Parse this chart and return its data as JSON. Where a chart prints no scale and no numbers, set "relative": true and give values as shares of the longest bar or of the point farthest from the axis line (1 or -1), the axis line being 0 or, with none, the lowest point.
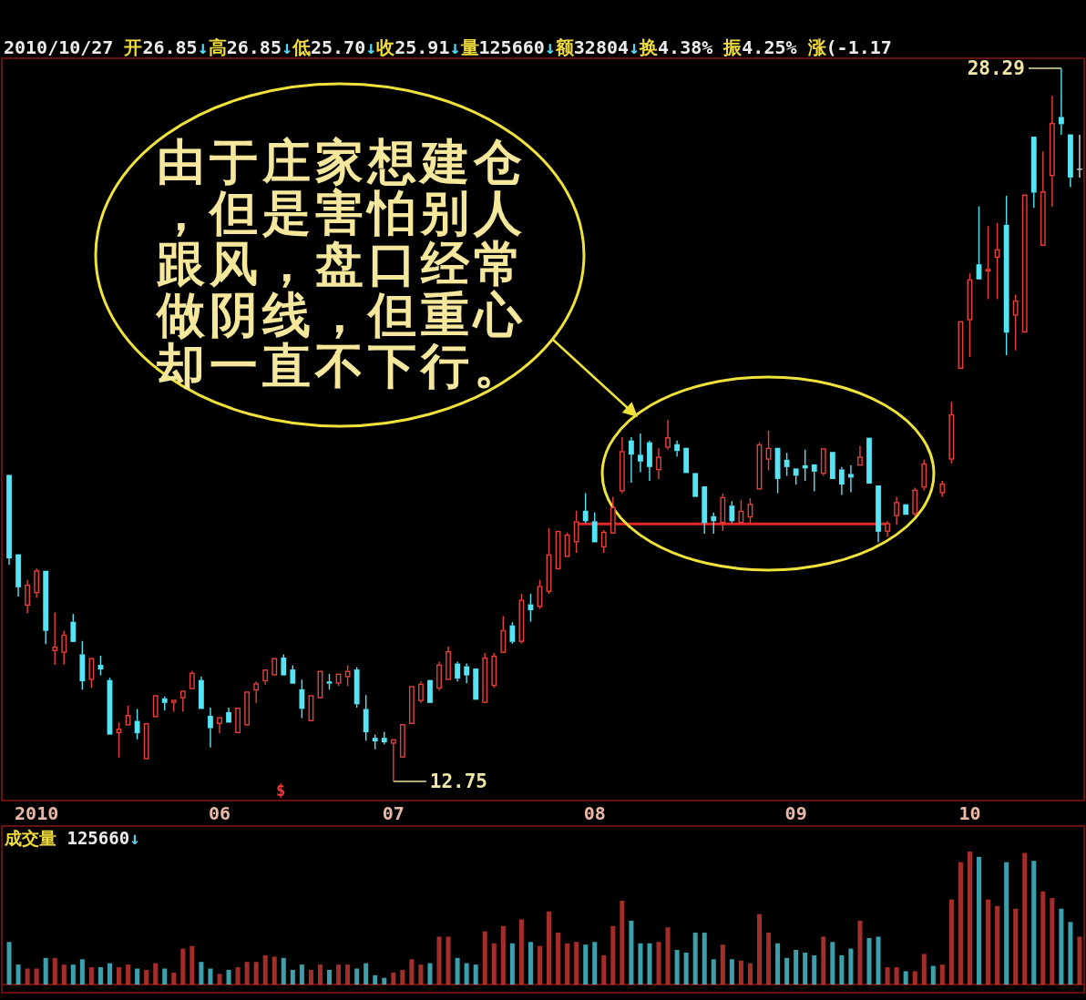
{
  "chart_data": [
    {
      "type": "candlestick",
      "subtitle": "2010/10/27 开26.85↓高26.85↓低25.70↓收25.91↓量125660↓额32804↓换4.38% 振4.25% 涨(-1.17",
      "tick_labels": "x",
      "categories": [
        null,
        null,
        null,
        "2010",
        null,
        null,
        null,
        null,
        null,
        null,
        null,
        null,
        null,
        null,
        null,
        null,
        null,
        null,
        null,
        null,
        null,
        null,
        null,
        "06",
        null,
        null,
        null,
        null,
        null,
        null,
        null,
        null,
        null,
        null,
        null,
        null,
        null,
        null,
        null,
        null,
        null,
        null,
        "07",
        null,
        null,
        null,
        null,
        null,
        null,
        null,
        null,
        null,
        null,
        null,
        null,
        null,
        null,
        null,
        null,
        null,
        null,
        null,
        null,
        null,
        "08",
        null,
        null,
        null,
        null,
        null,
        null,
        null,
        null,
        null,
        null,
        null,
        null,
        null,
        null,
        null,
        null,
        null,
        null,
        null,
        null,
        null,
        "09",
        null,
        null,
        null,
        null,
        null,
        null,
        null,
        null,
        null,
        null,
        null,
        null,
        null,
        null,
        null,
        null,
        null,
        null,
        "10",
        null,
        null,
        null,
        null,
        null,
        null,
        null,
        null,
        null,
        null,
        null,
        null
      ],
      "ohlc": [
        [
          19.43,
          19.43,
          17.47,
          17.61
        ],
        [
          17.7,
          17.72,
          16.78,
          16.98
        ],
        [
          16.58,
          17.14,
          16.41,
          17.04
        ],
        [
          16.85,
          17.39,
          16.75,
          17.35
        ],
        [
          17.34,
          17.34,
          15.74,
          16.03
        ],
        [
          15.59,
          16.43,
          15.29,
          15.69
        ],
        [
          15.55,
          16.03,
          15.3,
          15.95
        ],
        [
          16.23,
          16.4,
          15.77,
          15.79
        ],
        [
          15.52,
          15.81,
          14.75,
          14.93
        ],
        [
          14.96,
          15.46,
          14.79,
          15.44
        ],
        [
          15.29,
          15.49,
          15.06,
          15.19
        ],
        [
          14.96,
          15.01,
          13.76,
          13.77
        ],
        [
          13.8,
          14.03,
          13.27,
          13.9
        ],
        [
          13.97,
          14.4,
          13.95,
          14.2
        ],
        [
          14.07,
          14.33,
          13.67,
          13.8
        ],
        [
          13.23,
          14.03,
          13.21,
          14.02
        ],
        [
          14.15,
          14.66,
          14.13,
          14.63
        ],
        [
          14.56,
          14.6,
          14.3,
          14.46
        ],
        [
          14.46,
          14.54,
          14.27,
          14.53
        ],
        [
          14.56,
          14.76,
          14.27,
          14.73
        ],
        [
          14.76,
          15.16,
          14.75,
          15.12
        ],
        [
          14.96,
          15.03,
          14.31,
          14.33
        ],
        [
          14.18,
          14.36,
          13.49,
          13.91
        ],
        [
          14.0,
          14.18,
          13.8,
          14.15
        ],
        [
          14.26,
          14.36,
          14.0,
          14.03
        ],
        [
          13.8,
          14.38,
          13.78,
          14.36
        ],
        [
          13.97,
          14.73,
          13.95,
          14.71
        ],
        [
          14.73,
          14.93,
          14.46,
          14.89
        ],
        [
          14.93,
          15.22,
          14.86,
          15.19
        ],
        [
          15.06,
          15.46,
          15.03,
          15.44
        ],
        [
          15.45,
          15.52,
          15.04,
          15.06
        ],
        [
          15.19,
          15.28,
          14.86,
          14.88
        ],
        [
          14.76,
          14.97,
          14.13,
          14.33
        ],
        [
          14.06,
          14.66,
          14.03,
          14.63
        ],
        [
          14.56,
          15.19,
          14.53,
          15.16
        ],
        [
          14.93,
          15.09,
          14.75,
          14.88
        ],
        [
          14.88,
          15.12,
          14.83,
          15.1
        ],
        [
          15.02,
          15.28,
          14.83,
          15.16
        ],
        [
          15.19,
          15.24,
          14.36,
          14.43
        ],
        [
          14.33,
          14.63,
          13.64,
          13.82
        ],
        [
          13.7,
          13.77,
          13.45,
          13.62
        ],
        [
          13.7,
          13.83,
          13.56,
          13.6
        ],
        [
          13.57,
          13.7,
          12.75,
          13.67
        ],
        [
          13.27,
          14.03,
          13.24,
          14.0
        ],
        [
          14.0,
          14.86,
          13.97,
          14.83
        ],
        [
          14.5,
          14.93,
          14.46,
          14.88
        ],
        [
          14.96,
          14.99,
          14.44,
          14.46
        ],
        [
          14.77,
          15.36,
          14.73,
          15.3
        ],
        [
          14.96,
          15.69,
          14.93,
          15.59
        ],
        [
          15.32,
          15.36,
          14.93,
          14.99
        ],
        [
          15.26,
          15.32,
          14.89,
          15.06
        ],
        [
          15.21,
          15.24,
          14.5,
          14.53
        ],
        [
          14.46,
          15.55,
          14.44,
          15.45
        ],
        [
          14.83,
          15.55,
          14.79,
          15.49
        ],
        [
          15.55,
          16.35,
          15.52,
          16.05
        ],
        [
          16.15,
          16.22,
          15.75,
          15.79
        ],
        [
          15.79,
          16.84,
          15.75,
          16.71
        ],
        [
          16.61,
          16.84,
          16.23,
          16.48
        ],
        [
          16.55,
          17.14,
          16.51,
          17.01
        ],
        [
          16.88,
          18.27,
          16.84,
          17.7
        ],
        [
          17.37,
          18.23,
          17.34,
          18.21
        ],
        [
          17.64,
          18.17,
          17.62,
          18.13
        ],
        [
          17.96,
          18.65,
          17.73,
          18.42
        ],
        [
          18.65,
          19.03,
          18.38,
          18.42
        ],
        [
          18.42,
          18.61,
          17.95,
          17.96
        ],
        [
          17.85,
          18.23,
          17.73,
          18.19
        ],
        [
          18.15,
          18.95,
          18.13,
          18.73
        ],
        [
          19.07,
          20.25,
          19.03,
          19.95
        ],
        [
          20.18,
          20.25,
          19.26,
          19.87
        ],
        [
          19.87,
          20.33,
          19.49,
          19.72
        ],
        [
          20.14,
          20.18,
          19.3,
          19.6
        ],
        [
          19.53,
          20.02,
          19.34,
          19.83
        ],
        [
          20.02,
          20.63,
          19.98,
          20.25
        ],
        [
          20.1,
          20.18,
          19.83,
          19.95
        ],
        [
          20.02,
          20.04,
          19.46,
          19.47
        ],
        [
          19.47,
          19.49,
          18.92,
          18.95
        ],
        [
          19.18,
          19.2,
          18.15,
          18.38
        ],
        [
          18.53,
          18.61,
          18.15,
          18.42
        ],
        [
          18.38,
          19.02,
          18.21,
          18.95
        ],
        [
          18.76,
          18.86,
          18.38,
          18.42
        ],
        [
          18.38,
          18.88,
          18.36,
          18.65
        ],
        [
          18.5,
          18.92,
          18.38,
          18.8
        ],
        [
          19.11,
          20.14,
          19.09,
          20.1
        ],
        [
          19.76,
          20.39,
          19.53,
          20.02
        ],
        [
          20.02,
          20.04,
          19.03,
          19.34
        ],
        [
          19.76,
          19.91,
          19.41,
          19.6
        ],
        [
          19.57,
          19.6,
          19.22,
          19.41
        ],
        [
          19.64,
          19.98,
          19.3,
          19.57
        ],
        [
          19.66,
          19.68,
          19.07,
          19.5
        ],
        [
          19.45,
          20.02,
          19.41,
          20.01
        ],
        [
          19.93,
          19.95,
          19.32,
          19.34
        ],
        [
          19.55,
          19.6,
          18.99,
          19.22
        ],
        [
          19.45,
          19.64,
          19.05,
          19.37
        ],
        [
          19.63,
          20.06,
          19.6,
          19.83
        ],
        [
          20.24,
          20.25,
          19.22,
          19.24
        ],
        [
          19.2,
          19.22,
          17.96,
          18.19
        ],
        [
          18.19,
          18.42,
          18.08,
          18.38
        ],
        [
          18.53,
          18.95,
          18.34,
          18.84
        ],
        [
          18.79,
          18.82,
          18.53,
          18.56
        ],
        [
          18.57,
          19.15,
          18.53,
          19.11
        ],
        [
          19.15,
          19.76,
          19.09,
          19.68
        ],
        null,
        [
          19.03,
          19.3,
          18.95,
          19.24
        ],
        [
          19.76,
          21.02,
          19.68,
          20.75
        ],
        [
          21.74,
          22.8,
          21.72,
          22.78
        ],
        [
          22.8,
          23.82,
          22.0,
          23.69
        ],
        [
          24.02,
          25.28,
          23.68,
          23.69
        ],
        [
          23.86,
          24.85,
          23.26,
          23.92
        ],
        [
          24.16,
          24.92,
          23.26,
          24.35
        ],
        [
          24.88,
          25.51,
          22.04,
          22.53
        ],
        [
          22.9,
          23.36,
          22.14,
          23.23
        ],
        [
          22.53,
          25.56,
          22.51,
          25.54
        ],
        [
          26.8,
          26.81,
          25.25,
          25.58
        ],
        [
          24.42,
          26.48,
          24.41,
          25.61
        ],
        [
          25.94,
          27.69,
          25.28,
          27.1
        ],
        [
          27.23,
          28.29,
          26.84,
          27.07
        ],
        [
          26.85,
          26.85,
          25.7,
          25.91
        ],
        [
          26.09,
          26.84,
          25.91,
          26.09
        ]
      ],
      "colors": [
        "#54e4f4",
        "#54e4f4",
        "#e8403a",
        "#e8403a",
        "#54e4f4",
        "#e8403a",
        "#e8403a",
        "#54e4f4",
        "#54e4f4",
        "#e8403a",
        "#54e4f4",
        "#54e4f4",
        "#e8403a",
        "#e8403a",
        "#54e4f4",
        "#e8403a",
        "#e8403a",
        "#54e4f4",
        "#e8403a",
        "#e8403a",
        "#e8403a",
        "#54e4f4",
        "#54e4f4",
        "#e8403a",
        "#54e4f4",
        "#e8403a",
        "#e8403a",
        "#e8403a",
        "#e8403a",
        "#e8403a",
        "#54e4f4",
        "#54e4f4",
        "#54e4f4",
        "#e8403a",
        "#e8403a",
        "#54e4f4",
        "#e8403a",
        "#e8403a",
        "#54e4f4",
        "#54e4f4",
        "#54e4f4",
        "#54e4f4",
        "#e8403a",
        "#e8403a",
        "#e8403a",
        "#e8403a",
        "#54e4f4",
        "#e8403a",
        "#e8403a",
        "#54e4f4",
        "#54e4f4",
        "#54e4f4",
        "#e8403a",
        "#e8403a",
        "#e8403a",
        "#54e4f4",
        "#e8403a",
        "#54e4f4",
        "#e8403a",
        "#e8403a",
        "#e8403a",
        "#e8403a",
        "#e8403a",
        "#54e4f4",
        "#54e4f4",
        "#e8403a",
        "#e8403a",
        "#e8403a",
        "#54e4f4",
        "#54e4f4",
        "#54e4f4",
        "#e8403a",
        "#e8403a",
        "#54e4f4",
        "#54e4f4",
        "#54e4f4",
        "#54e4f4",
        "#54e4f4",
        "#e8403a",
        "#54e4f4",
        "#e8403a",
        "#e8403a",
        "#e8403a",
        "#e8403a",
        "#54e4f4",
        "#54e4f4",
        "#54e4f4",
        "#54e4f4",
        "#54e4f4",
        "#e8403a",
        "#54e4f4",
        "#54e4f4",
        "#54e4f4",
        "#e8403a",
        "#54e4f4",
        "#54e4f4",
        "#e8403a",
        "#e8403a",
        "#54e4f4",
        "#e8403a",
        "#e8403a",
        null,
        "#e8403a",
        "#e8403a",
        "#e8403a",
        "#e8403a",
        "#54e4f4",
        "#e8403a",
        "#e8403a",
        "#54e4f4",
        "#e8403a",
        "#e8403a",
        "#54e4f4",
        "#e8403a",
        "#e8403a",
        "#54e4f4",
        "#54e4f4",
        "#dcdcdc"
      ],
      "series": [
        {
          "type": "line",
          "color": "#e02828",
          "values": [
            null,
            null,
            null,
            null,
            null,
            null,
            null,
            null,
            null,
            null,
            null,
            null,
            null,
            null,
            null,
            null,
            null,
            null,
            null,
            null,
            null,
            null,
            null,
            null,
            null,
            null,
            null,
            null,
            null,
            null,
            null,
            null,
            null,
            null,
            null,
            null,
            null,
            null,
            null,
            null,
            null,
            null,
            null,
            null,
            null,
            null,
            null,
            null,
            null,
            null,
            null,
            null,
            null,
            null,
            null,
            null,
            null,
            null,
            null,
            null,
            null,
            null,
            18.36,
            18.36,
            18.36,
            18.36,
            18.36,
            18.36,
            18.36,
            18.36,
            18.36,
            18.36,
            18.36,
            18.36,
            18.36,
            18.36,
            18.36,
            18.36,
            18.36,
            18.36,
            18.36,
            18.36,
            18.36,
            18.36,
            18.36,
            18.36,
            18.36,
            18.36,
            18.36,
            18.36,
            18.36,
            18.36,
            18.36,
            18.36,
            18.36,
            18.36,
            18.36,
            null,
            null,
            null,
            null,
            null,
            null,
            null,
            null,
            null,
            null,
            null,
            null,
            null,
            null,
            null,
            null,
            null,
            null,
            null,
            null,
            null
          ]
        }
      ],
      "annotations": [
        "由于庄家想建仓，但是害怕别人跟风，盘口经常做阴线，但重心却一直不下行。",
        "$",
        "28.29",
        {
          "text": "12.75",
          "x": "07",
          "y": 12.75
        }
      ]
    },
    {
      "type": "bar",
      "title": "成交量 125660↓",
      "relative": true,
      "tick_labels": false,
      "categories": [
        null,
        null,
        null,
        null,
        null,
        null,
        null,
        null,
        null,
        null,
        null,
        null,
        null,
        null,
        null,
        null,
        null,
        null,
        null,
        null,
        null,
        null,
        null,
        null,
        null,
        null,
        null,
        null,
        null,
        null,
        null,
        null,
        null,
        null,
        null,
        null,
        null,
        null,
        null,
        null,
        null,
        null,
        null,
        null,
        null,
        null,
        null,
        null,
        null,
        null,
        null,
        null,
        null,
        null,
        null,
        null,
        null,
        null,
        null,
        null,
        null,
        null,
        null,
        null,
        null,
        null,
        null,
        null,
        null,
        null,
        null,
        null,
        null,
        null,
        null,
        null,
        null,
        null,
        null,
        null,
        null,
        null,
        null,
        null,
        null,
        null,
        null,
        null,
        null,
        null,
        null,
        null,
        null,
        null,
        null,
        null,
        null,
        null,
        null,
        null,
        null,
        null,
        null,
        null,
        null,
        null,
        null,
        null,
        null,
        null,
        null,
        null,
        null,
        null,
        null,
        null,
        null,
        null
      ],
      "values": [
        0.32,
        0.15,
        0.12,
        0.12,
        0.2,
        0.2,
        0.15,
        0.15,
        0.19,
        0.13,
        0.13,
        0.16,
        0.13,
        0.15,
        0.12,
        0.11,
        0.16,
        0.12,
        0.09,
        0.27,
        0.29,
        0.17,
        0.12,
        0.08,
        0.11,
        0.13,
        0.17,
        0.17,
        0.22,
        0.21,
        0.2,
        0.11,
        0.15,
        0.11,
        0.15,
        0.11,
        0.15,
        0.15,
        0.12,
        0.16,
        0.07,
        0.05,
        0.09,
        0.11,
        0.19,
        0.15,
        0.16,
        0.36,
        0.36,
        0.2,
        0.16,
        0.15,
        0.4,
        0.31,
        0.44,
        0.31,
        0.49,
        0.32,
        0.29,
        0.55,
        0.39,
        0.31,
        0.32,
        0.3,
        0.32,
        0.22,
        0.44,
        0.63,
        0.48,
        0.31,
        0.31,
        0.32,
        0.43,
        0.26,
        0.24,
        0.39,
        0.39,
        0.19,
        0.3,
        0.19,
        0.18,
        0.16,
        0.53,
        0.39,
        0.31,
        0.2,
        0.26,
        0.24,
        0.22,
        0.36,
        0.32,
        0.22,
        0.27,
        0.48,
        0.35,
        0.36,
        0.13,
        0.13,
        0.1,
        0.1,
        0.23,
        0.14,
        0.15,
        0.64,
        0.92,
        1,
        0.96,
        0.64,
        0.59,
        0.92,
        0.57,
        0.99,
        0.93,
        0.7,
        0.65,
        0.57,
        0.47,
        0.36
      ],
      "colors": [
        "#54e4f4",
        "#54e4f4",
        "#e8403a",
        "#e8403a",
        "#54e4f4",
        "#e8403a",
        "#e8403a",
        "#54e4f4",
        "#54e4f4",
        "#e8403a",
        "#54e4f4",
        "#54e4f4",
        "#e8403a",
        "#e8403a",
        "#54e4f4",
        "#e8403a",
        "#e8403a",
        "#54e4f4",
        "#e8403a",
        "#e8403a",
        "#e8403a",
        "#54e4f4",
        "#54e4f4",
        "#e8403a",
        "#54e4f4",
        "#e8403a",
        "#e8403a",
        "#e8403a",
        "#e8403a",
        "#e8403a",
        "#54e4f4",
        "#54e4f4",
        "#54e4f4",
        "#e8403a",
        "#e8403a",
        "#54e4f4",
        "#e8403a",
        "#e8403a",
        "#54e4f4",
        "#54e4f4",
        "#54e4f4",
        "#54e4f4",
        "#e8403a",
        "#e8403a",
        "#e8403a",
        "#e8403a",
        "#54e4f4",
        "#e8403a",
        "#e8403a",
        "#54e4f4",
        "#54e4f4",
        "#54e4f4",
        "#e8403a",
        "#e8403a",
        "#e8403a",
        "#54e4f4",
        "#e8403a",
        "#54e4f4",
        "#e8403a",
        "#e8403a",
        "#e8403a",
        "#e8403a",
        "#e8403a",
        "#54e4f4",
        "#54e4f4",
        "#e8403a",
        "#e8403a",
        "#e8403a",
        "#54e4f4",
        "#54e4f4",
        "#54e4f4",
        "#e8403a",
        "#e8403a",
        "#54e4f4",
        "#54e4f4",
        "#54e4f4",
        "#54e4f4",
        "#54e4f4",
        "#e8403a",
        "#54e4f4",
        "#e8403a",
        "#e8403a",
        "#e8403a",
        "#e8403a",
        "#54e4f4",
        "#54e4f4",
        "#54e4f4",
        "#54e4f4",
        "#54e4f4",
        "#e8403a",
        "#54e4f4",
        "#54e4f4",
        "#54e4f4",
        "#e8403a",
        "#54e4f4",
        "#54e4f4",
        "#e8403a",
        "#e8403a",
        "#54e4f4",
        "#e8403a",
        "#e8403a",
        "#54e4f4",
        "#e8403a",
        "#e8403a",
        "#e8403a",
        "#e8403a",
        "#54e4f4",
        "#e8403a",
        "#e8403a",
        "#54e4f4",
        "#e8403a",
        "#e8403a",
        "#54e4f4",
        "#e8403a",
        "#e8403a",
        "#54e4f4",
        "#54e4f4",
        "#e8403a"
      ]
    }
  ]
}
